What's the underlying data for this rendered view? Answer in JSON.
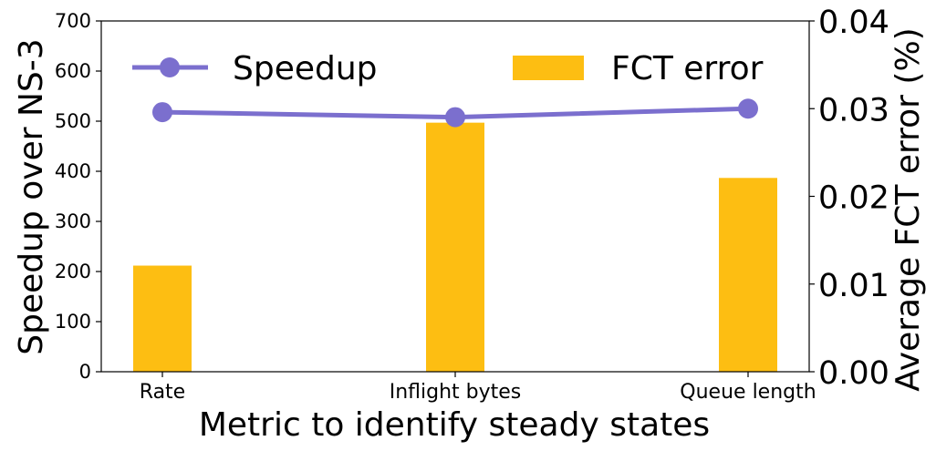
{
  "chart_data": {
    "type": "bar+line",
    "categories": [
      "Rate",
      "Inflight bytes",
      "Queue length"
    ],
    "xlabel": "Metric to identify steady states",
    "y_left": {
      "label": "Speedup over NS-3",
      "lim": [
        0,
        700
      ],
      "ticks": [
        0,
        100,
        200,
        300,
        400,
        500,
        600,
        700
      ]
    },
    "y_right": {
      "label": "Average FCT error (%)",
      "lim": [
        0,
        0.04
      ],
      "ticks": [
        "0.00",
        "0.01",
        "0.02",
        "0.03",
        "0.04"
      ]
    },
    "series": [
      {
        "name": "Speedup",
        "kind": "line",
        "axis": "left",
        "color": "#7B6FCE",
        "values": [
          518,
          508,
          525
        ]
      },
      {
        "name": "FCT error",
        "kind": "bar",
        "axis": "right",
        "color": "#FDBE12",
        "values": [
          0.0121,
          0.0284,
          0.0221
        ]
      }
    ],
    "legend": "top",
    "grid": false
  }
}
